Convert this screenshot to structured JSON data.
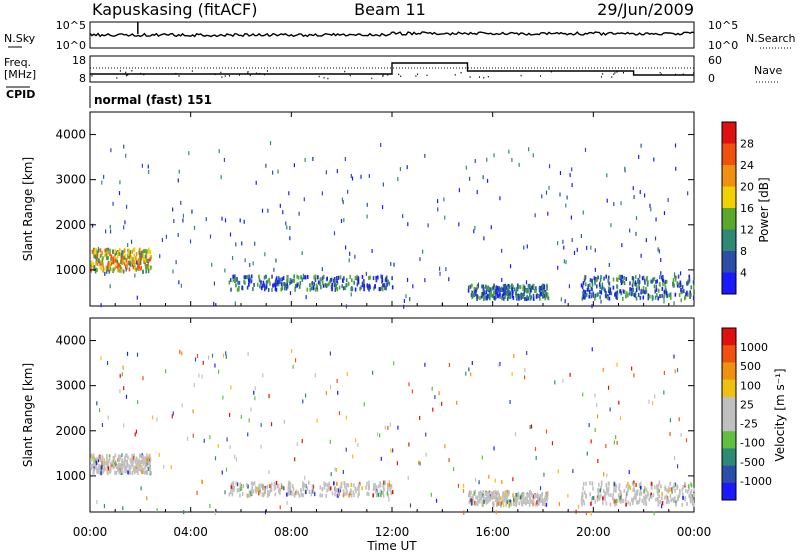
{
  "header": {
    "station": "Kapuskasing (fitACF)",
    "beam": "Beam 11",
    "date": "29/Jun/2009"
  },
  "noise_panel": {
    "left_label": "N.Sky",
    "right_label": "N.Search",
    "left_ticks": [
      "10^5",
      "10^0"
    ],
    "right_ticks": [
      "10^5",
      "10^0"
    ]
  },
  "freq_panel": {
    "left_label_1": "Freq.",
    "left_label_2": "[MHz]",
    "right_label": "Nave",
    "left_ticks": [
      "18",
      "8"
    ],
    "right_ticks": [
      "60",
      "0"
    ],
    "cpid_label": "CPID",
    "cpid_text": "normal (fast) 151"
  },
  "x_axis": {
    "label": "Time UT",
    "tick_labels": [
      "00:00",
      "04:00",
      "08:00",
      "12:00",
      "16:00",
      "20:00",
      "00:00"
    ]
  },
  "colors": {
    "power_scale": [
      "#1a1aff",
      "#2b4fa8",
      "#2e8a74",
      "#5aa82c",
      "#f0d000",
      "#f09010",
      "#f05010",
      "#e01010"
    ],
    "velocity_scale": [
      "#e01010",
      "#f05010",
      "#f09010",
      "#f0c010",
      "#c0c0c0",
      "#c0c0c0",
      "#60c040",
      "#2e8a74",
      "#2b4fa8",
      "#1a1aff"
    ]
  },
  "chart_data": [
    {
      "type": "heatmap",
      "quantity": "power",
      "ylabel": "Slant Range [km]",
      "x_range_hours": [
        0,
        24
      ],
      "ylim": [
        200,
        4500
      ],
      "y_tick_labels": [
        "1000",
        "2000",
        "3000",
        "4000"
      ],
      "colorbar_label": "Power [dB]",
      "colorbar_ticks": [
        "4",
        "8",
        "12",
        "16",
        "20",
        "24",
        "28"
      ],
      "scatter_regions": [
        {
          "t_start": 0.0,
          "t_end": 2.4,
          "r_min": 1000,
          "r_max": 1500,
          "level": "high"
        },
        {
          "t_start": 5.5,
          "t_end": 12.0,
          "r_min": 600,
          "r_max": 900,
          "level": "medium"
        },
        {
          "t_start": 15.0,
          "t_end": 18.2,
          "r_min": 400,
          "r_max": 700,
          "level": "medium"
        },
        {
          "t_start": 19.5,
          "t_end": 24.0,
          "r_min": 400,
          "r_max": 900,
          "level": "medium"
        }
      ]
    },
    {
      "type": "heatmap",
      "quantity": "velocity",
      "ylabel": "Slant Range [km]",
      "x_range_hours": [
        0,
        24
      ],
      "ylim": [
        200,
        4500
      ],
      "y_tick_labels": [
        "1000",
        "2000",
        "3000",
        "4000"
      ],
      "colorbar_label": "Velocity [m s⁻¹]",
      "colorbar_ticks": [
        "1000",
        "500",
        "100",
        "25",
        "-25",
        "-100",
        "-500",
        "-1000"
      ],
      "scatter_regions": [
        {
          "t_start": 0.0,
          "t_end": 2.4,
          "r_min": 1100,
          "r_max": 1500,
          "level": "low"
        },
        {
          "t_start": 5.5,
          "t_end": 12.0,
          "r_min": 600,
          "r_max": 900,
          "level": "low"
        },
        {
          "t_start": 15.0,
          "t_end": 18.2,
          "r_min": 400,
          "r_max": 700,
          "level": "low"
        },
        {
          "t_start": 19.5,
          "t_end": 24.0,
          "r_min": 400,
          "r_max": 900,
          "level": "low"
        }
      ]
    }
  ]
}
